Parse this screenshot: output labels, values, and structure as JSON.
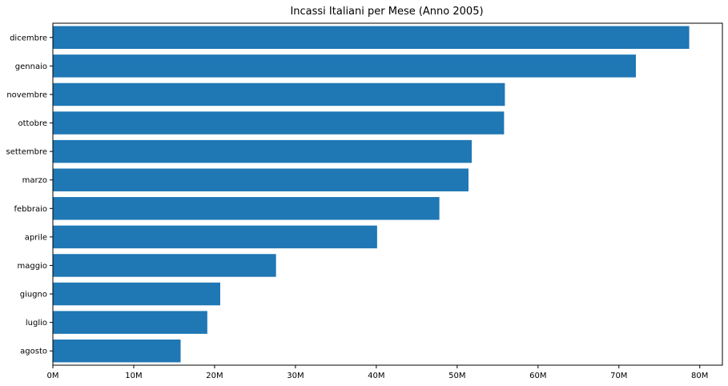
{
  "chart_data": {
    "type": "bar",
    "orientation": "horizontal",
    "title": "Incassi Italiani per Mese (Anno 2005)",
    "xlabel": "",
    "ylabel": "",
    "categories": [
      "dicembre",
      "gennaio",
      "novembre",
      "ottobre",
      "settembre",
      "marzo",
      "febbraio",
      "aprile",
      "maggio",
      "giugno",
      "luglio",
      "agosto"
    ],
    "values": [
      78700000,
      72100000,
      55900000,
      55800000,
      51800000,
      51400000,
      47800000,
      40100000,
      27600000,
      20700000,
      19100000,
      15800000
    ],
    "xlim": [
      0,
      82800000
    ],
    "xticks": [
      0,
      10000000,
      20000000,
      30000000,
      40000000,
      50000000,
      60000000,
      70000000,
      80000000
    ],
    "xtick_labels": [
      "0M",
      "10M",
      "20M",
      "30M",
      "40M",
      "50M",
      "60M",
      "70M",
      "80M"
    ],
    "bar_color": "#1f77b4",
    "grid": false,
    "legend": "none"
  }
}
